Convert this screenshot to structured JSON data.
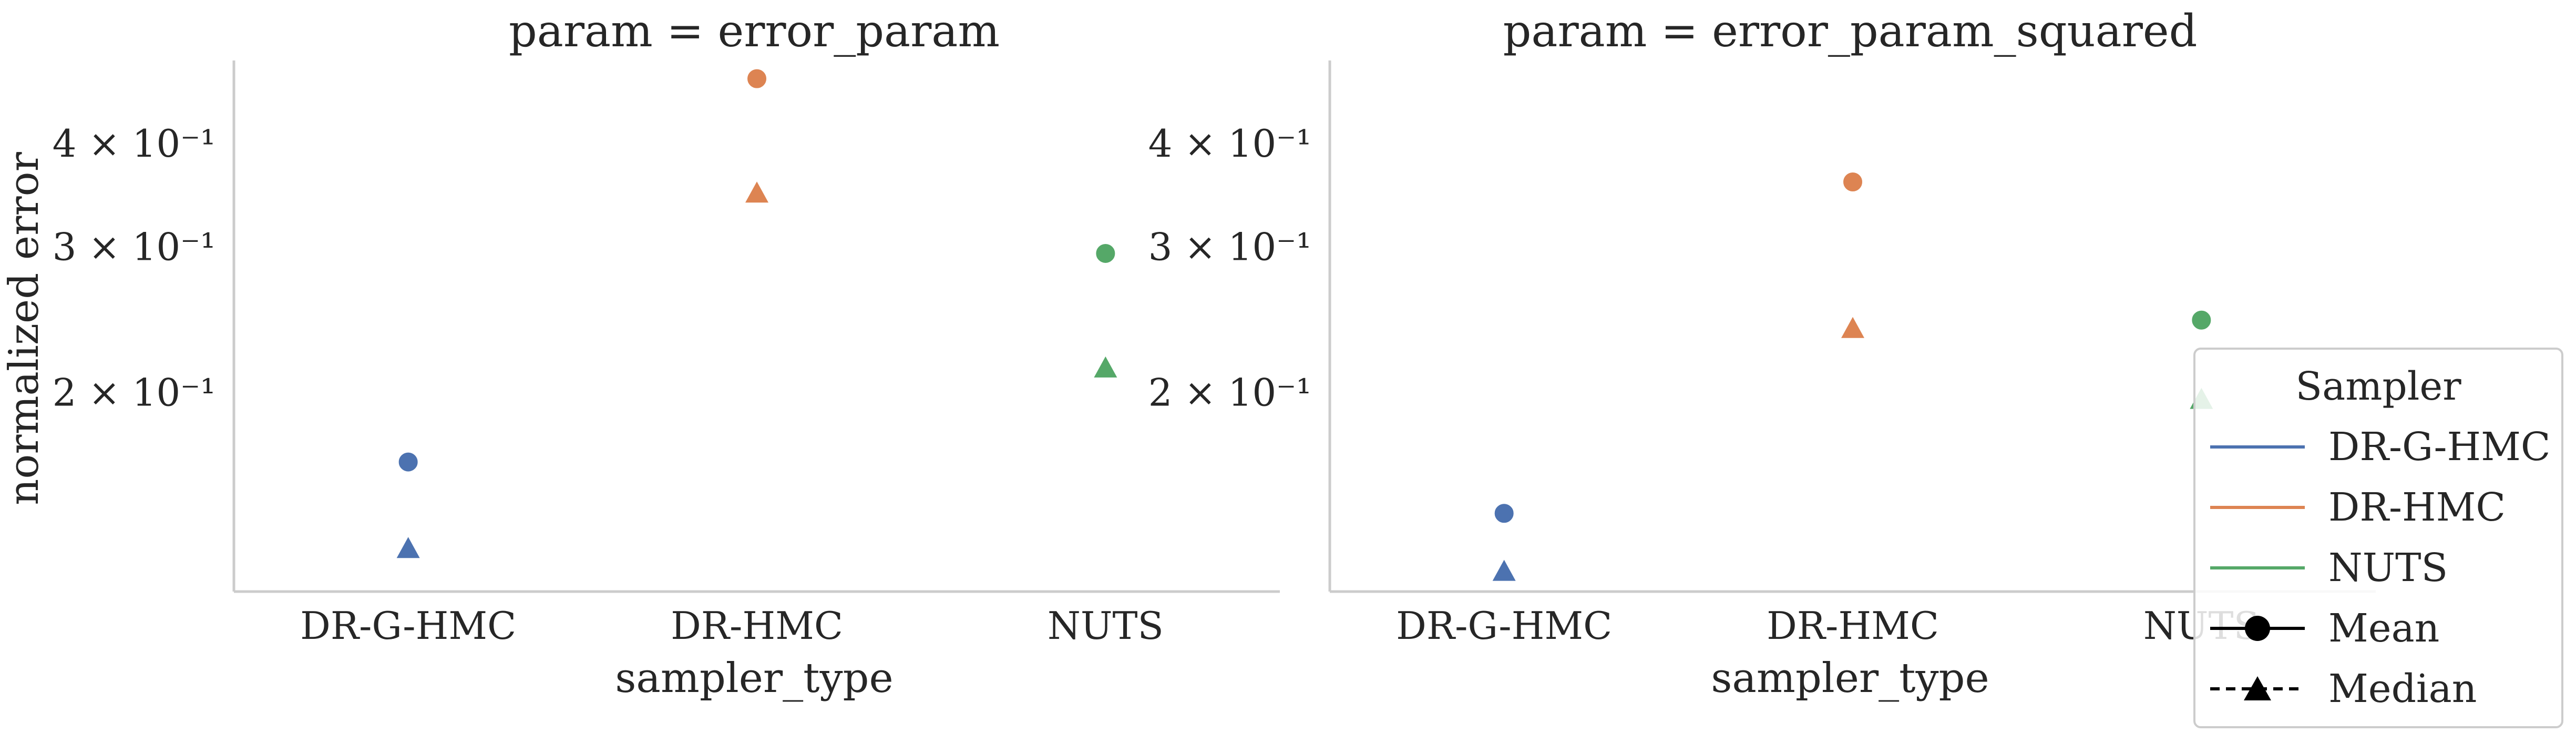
{
  "ylabel": "normalized error",
  "legend": {
    "title": "Sampler",
    "samplers": [
      {
        "label": "DR-G-HMC",
        "color": "#4c72b0"
      },
      {
        "label": "DR-HMC",
        "color": "#dd8452"
      },
      {
        "label": "NUTS",
        "color": "#55a868"
      }
    ],
    "stats": [
      {
        "label": "Mean",
        "marker": "circle",
        "line": "solid"
      },
      {
        "label": "Median",
        "marker": "triangle",
        "line": "dashed"
      }
    ],
    "placement": "right"
  },
  "chart_data": [
    {
      "type": "scatter",
      "title": "param = error_param",
      "xlabel": "sampler_type",
      "ylabel": "normalized error",
      "yscale": "log",
      "ylim": [
        0.115,
        0.505
      ],
      "grid": false,
      "categories": [
        "DR-G-HMC",
        "DR-HMC",
        "NUTS"
      ],
      "y_ticks": [
        {
          "value": 0.2,
          "label": "2 × 10⁻¹"
        },
        {
          "value": 0.3,
          "label": "3 × 10⁻¹"
        },
        {
          "value": 0.4,
          "label": "4 × 10⁻¹"
        }
      ],
      "series": [
        {
          "name": "Mean",
          "marker": "circle",
          "values": [
            0.165,
            0.48,
            0.295
          ]
        },
        {
          "name": "Median",
          "marker": "triangle",
          "values": [
            0.13,
            0.35,
            0.215
          ]
        }
      ]
    },
    {
      "type": "scatter",
      "title": "param = error_param_squared",
      "xlabel": "sampler_type",
      "ylabel": "",
      "yscale": "log",
      "ylim": [
        0.115,
        0.505
      ],
      "grid": false,
      "categories": [
        "DR-G-HMC",
        "DR-HMC",
        "NUTS"
      ],
      "y_ticks": [
        {
          "value": 0.2,
          "label": "2 × 10⁻¹"
        },
        {
          "value": 0.3,
          "label": "3 × 10⁻¹"
        },
        {
          "value": 0.4,
          "label": "4 × 10⁻¹"
        }
      ],
      "series": [
        {
          "name": "Mean",
          "marker": "circle",
          "values": [
            0.143,
            0.36,
            0.245
          ]
        },
        {
          "name": "Median",
          "marker": "triangle",
          "values": [
            0.122,
            0.24,
            0.197
          ]
        }
      ]
    }
  ]
}
